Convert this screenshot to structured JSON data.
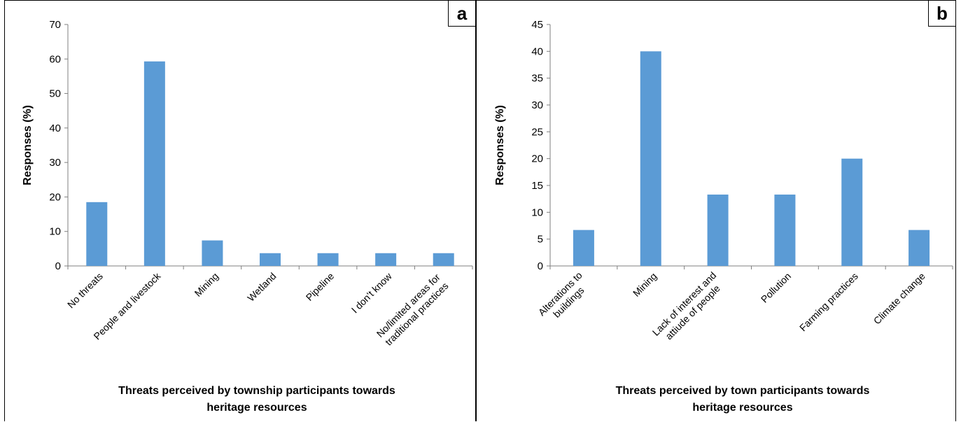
{
  "chart_data": [
    {
      "type": "bar",
      "panel_label": "a",
      "categories": [
        "No threats",
        "People and livestock",
        "Mining",
        "Wetland",
        "Pipeline",
        "I don’t know",
        "No/limited areas for traditional practices"
      ],
      "category_lines": [
        [
          "No threats"
        ],
        [
          "People and livestock"
        ],
        [
          "Mining"
        ],
        [
          "Wetland"
        ],
        [
          "Pipeline"
        ],
        [
          "I don’t know"
        ],
        [
          "No/limited areas for",
          "traditional practices"
        ]
      ],
      "values": [
        18.5,
        59.3,
        7.4,
        3.7,
        3.7,
        3.7,
        3.7
      ],
      "ylabel": "Responses (%)",
      "xlabel": "Threats perceived by township participants towards heritage resources",
      "xlabel_lines": [
        "Threats perceived by township participants towards",
        "heritage resources"
      ],
      "ylim": [
        0,
        70
      ],
      "yticks": [
        0,
        10,
        20,
        30,
        40,
        50,
        60,
        70
      ],
      "bar_color": "#5b9bd5",
      "grid": false,
      "legend": "none"
    },
    {
      "type": "bar",
      "panel_label": "b",
      "categories": [
        "Alterations to buildings",
        "Mining",
        "Lack of interest and attitude of people",
        "Pollution",
        "Farming practices",
        "Climate change"
      ],
      "category_lines": [
        [
          "Alterations to",
          "buildings"
        ],
        [
          "Mining"
        ],
        [
          "Lack of interest and",
          "attiude of people"
        ],
        [
          "Pollution"
        ],
        [
          "Farming practices"
        ],
        [
          "Climate change"
        ]
      ],
      "values": [
        6.7,
        40.0,
        13.3,
        13.3,
        20.0,
        6.7
      ],
      "ylabel": "Responses (%)",
      "xlabel": "Threats perceived by town participants towards heritage resources",
      "xlabel_lines": [
        "Threats perceived by town participants towards",
        "heritage resources"
      ],
      "ylim": [
        0,
        45
      ],
      "yticks": [
        0,
        5,
        10,
        15,
        20,
        25,
        30,
        35,
        40,
        45
      ],
      "bar_color": "#5b9bd5",
      "grid": false,
      "legend": "none"
    }
  ]
}
